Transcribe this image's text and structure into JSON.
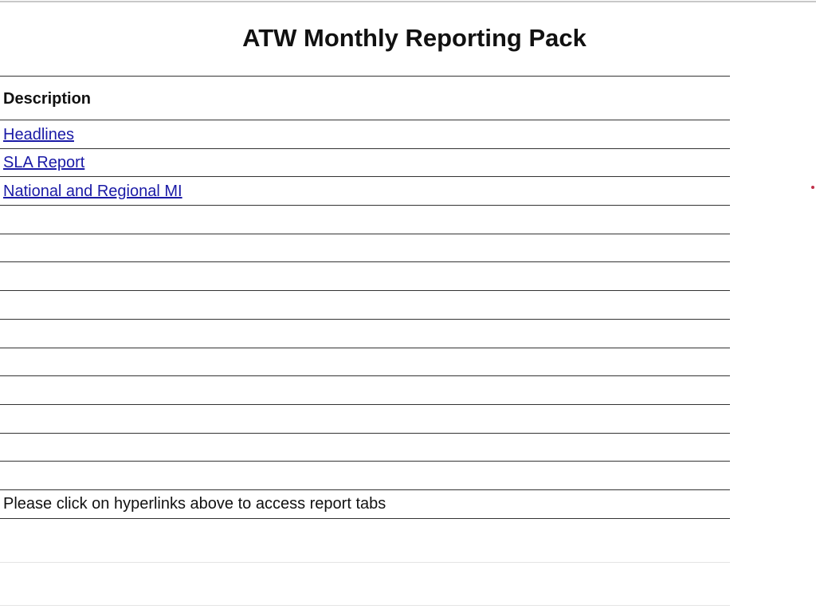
{
  "title": "ATW Monthly Reporting Pack",
  "table": {
    "header": "Description",
    "links": [
      {
        "label": "Headlines"
      },
      {
        "label": "SLA Report"
      },
      {
        "label": "National and Regional MI"
      }
    ],
    "note": "Please click on hyperlinks above to access report tabs"
  },
  "colors": {
    "link": "#1a1aa6",
    "text": "#111111",
    "rule": "#333333"
  }
}
